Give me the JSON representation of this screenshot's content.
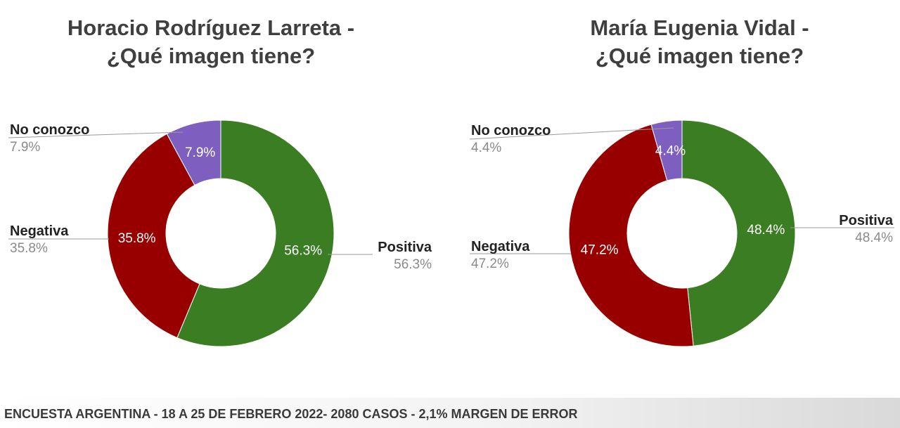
{
  "chart_data": [
    {
      "type": "pie",
      "donut": true,
      "title_line1": "Horacio Rodríguez Larreta -",
      "title_line2": "¿Qué imagen tiene?",
      "categories": [
        "Positiva",
        "Negativa",
        "No conozco"
      ],
      "values": [
        56.3,
        35.8,
        7.9
      ],
      "labels": [
        "56.3%",
        "35.8%",
        "7.9%"
      ],
      "colors": [
        "#3a7d22",
        "#980000",
        "#7e5fc0"
      ]
    },
    {
      "type": "pie",
      "donut": true,
      "title_line1": "María Eugenia Vidal -",
      "title_line2": "¿Qué imagen tiene?",
      "categories": [
        "Positiva",
        "Negativa",
        "No conozco"
      ],
      "values": [
        48.4,
        47.2,
        4.4
      ],
      "labels": [
        "48.4%",
        "47.2%",
        "4.4%"
      ],
      "colors": [
        "#3a7d22",
        "#980000",
        "#7e5fc0"
      ]
    }
  ],
  "footer": "ENCUESTA ARGENTINA - 18 A 25 DE FEBRERO 2022- 2080 CASOS - 2,1% MARGEN DE ERROR"
}
